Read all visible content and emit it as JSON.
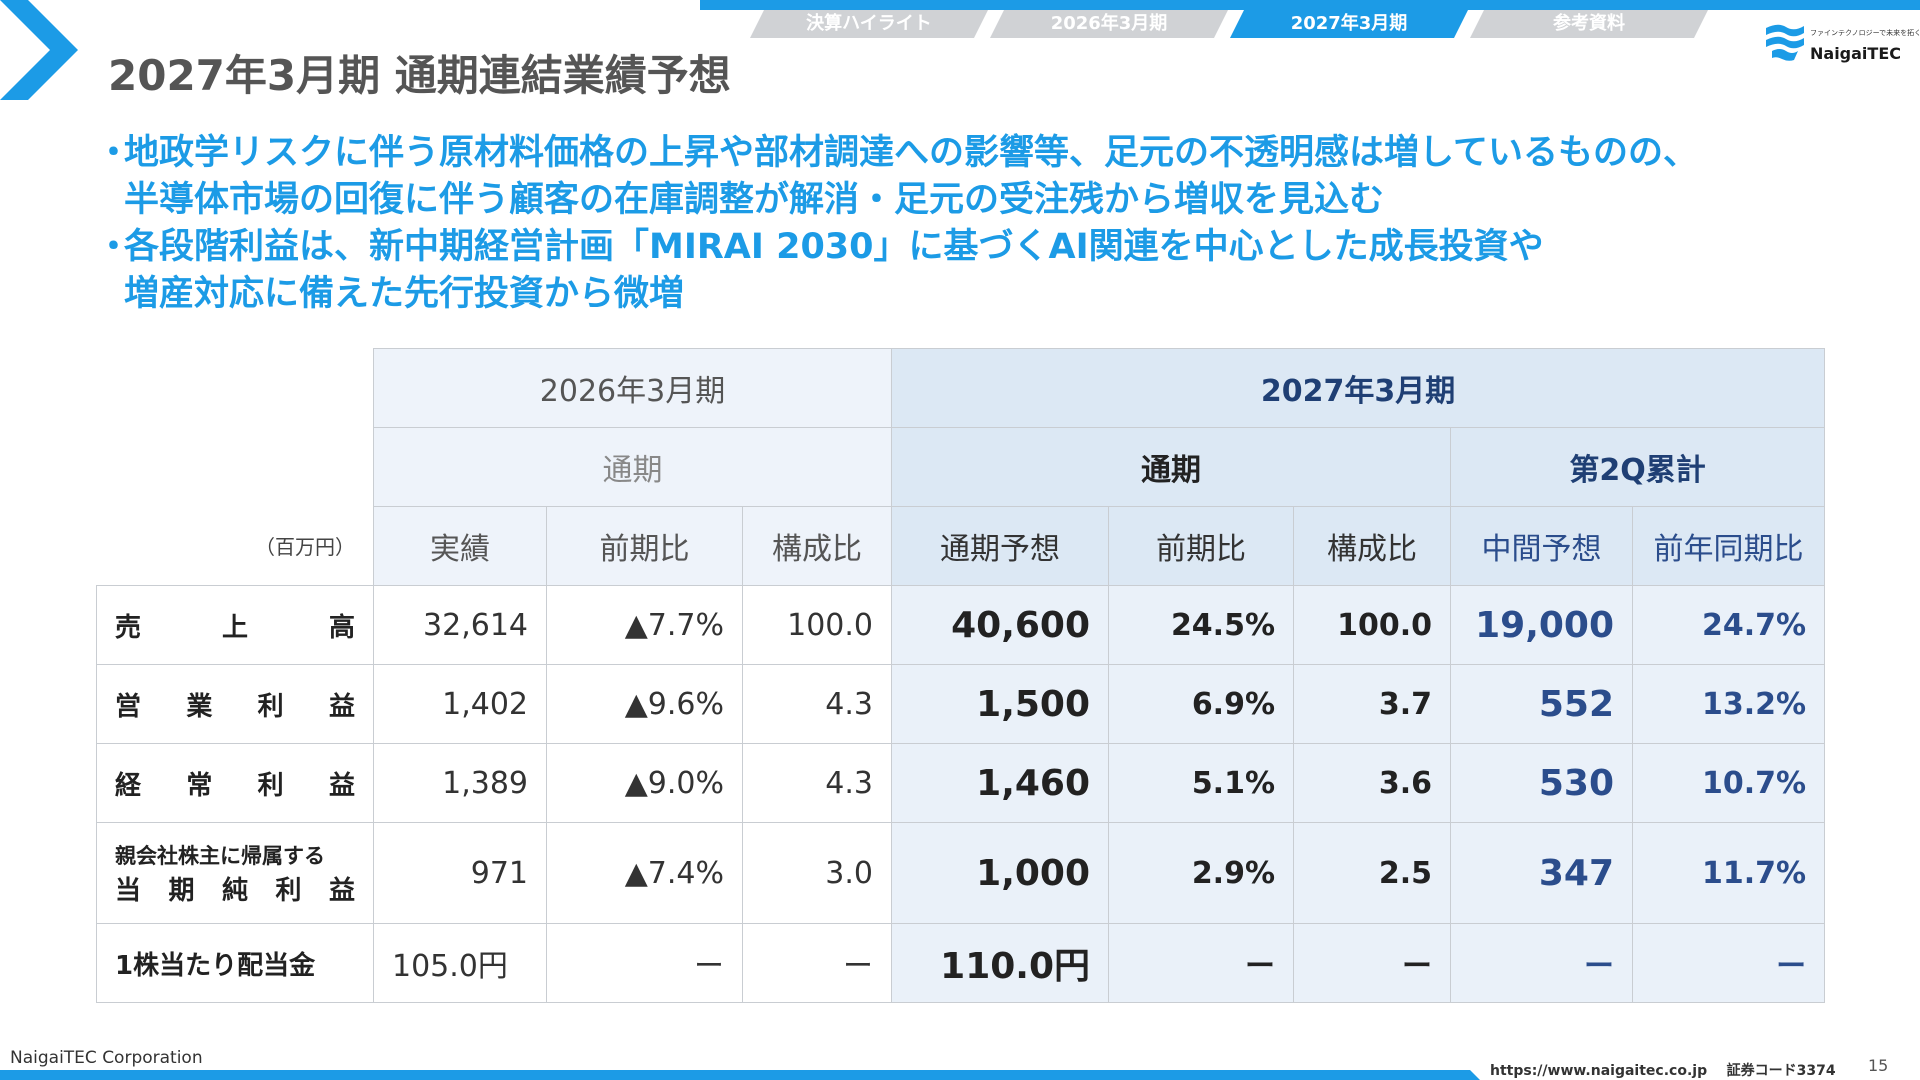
{
  "tabs": [
    "決算ハイライト",
    "2026年3月期",
    "2027年3月期",
    "参考資料"
  ],
  "active_tab_index": 2,
  "title": "2027年3月期 通期連結業績予想",
  "logo": {
    "name": "NaigaiTEC",
    "tagline": "ファインテクノロジーで未来を拓く"
  },
  "bullets": [
    {
      "marker": "・",
      "lines": [
        "地政学リスクに伴う原材料価格の上昇や部材調達への影響等、足元の不透明感は増しているものの、",
        "半導体市場の回復に伴う顧客の在庫調整が解消・足元の受注残から増収を見込む"
      ]
    },
    {
      "marker": "・",
      "lines": [
        "各段階利益は、新中期経営計画「MIRAI 2030」に基づくAI関連を中心とした成長投資や",
        "増産対応に備えた先行投資から微増"
      ]
    }
  ],
  "table": {
    "unit": "（百万円）",
    "fy2026": "2026年3月期",
    "fy2027": "2027年3月期",
    "full_year": "通期",
    "cumulative_2q": "第2Q累計",
    "col_headers": [
      "実績",
      "前期比",
      "構成比",
      "通期予想",
      "前期比",
      "構成比",
      "中間予想",
      "前年同期比"
    ],
    "rows": [
      {
        "label_chars": [
          "売",
          "上",
          "高"
        ],
        "actual": "32,614",
        "yoy": "▲7.7%",
        "comp": "100.0",
        "forecast": "40,600",
        "f_yoy": "24.5%",
        "f_comp": "100.0",
        "interim": "19,000",
        "i_yoy": "24.7%"
      },
      {
        "label_chars": [
          "営",
          "業",
          "利",
          "益"
        ],
        "actual": "1,402",
        "yoy": "▲9.6%",
        "comp": "4.3",
        "forecast": "1,500",
        "f_yoy": "6.9%",
        "f_comp": "3.7",
        "interim": "552",
        "i_yoy": "13.2%"
      },
      {
        "label_chars": [
          "経",
          "常",
          "利",
          "益"
        ],
        "actual": "1,389",
        "yoy": "▲9.0%",
        "comp": "4.3",
        "forecast": "1,460",
        "f_yoy": "5.1%",
        "f_comp": "3.6",
        "interim": "530",
        "i_yoy": "10.7%"
      },
      {
        "label_small": "親会社株主に帰属する",
        "label_chars": [
          "当",
          "期",
          "純",
          "利",
          "益"
        ],
        "actual": "971",
        "yoy": "▲7.4%",
        "comp": "3.0",
        "forecast": "1,000",
        "f_yoy": "2.9%",
        "f_comp": "2.5",
        "interim": "347",
        "i_yoy": "11.7%"
      },
      {
        "label": "1株当たり配当金",
        "actual": "105.0円",
        "yoy": "ー",
        "comp": "ー",
        "forecast": "110.0円",
        "f_yoy": "ー",
        "f_comp": "ー",
        "interim": "ー",
        "i_yoy": "ー"
      }
    ]
  },
  "footer": {
    "company": "NaigaiTEC Corporation",
    "url": "https://www.naigaitec.co.jp",
    "code": "証券コード3374",
    "page": "15"
  },
  "colors": {
    "accent": "#1c9be6",
    "navy": "#2b4d8c",
    "tab_inactive": "#d0d2d5"
  }
}
